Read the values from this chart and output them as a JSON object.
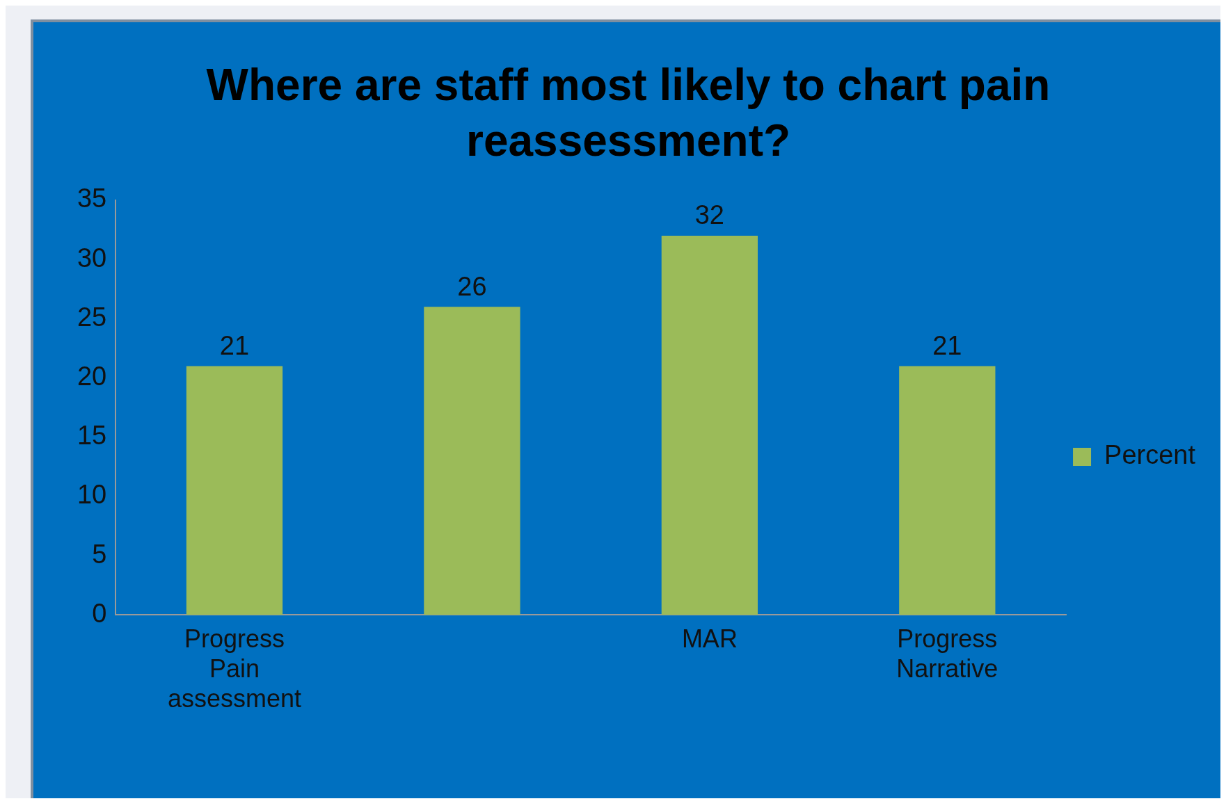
{
  "chart_data": {
    "type": "bar",
    "title": "Where are staff most likely to chart pain reassessment?",
    "categories": [
      "Progress Pain assessment",
      null,
      "MAR",
      "Progress Narrative"
    ],
    "series": [
      {
        "name": "Percent",
        "color": "#9bbb59",
        "values": [
          21,
          26,
          32,
          21
        ]
      }
    ],
    "ylim": [
      0,
      35
    ],
    "yticks": [
      0,
      5,
      10,
      15,
      20,
      25,
      30,
      35
    ],
    "grid": false,
    "legend": "right",
    "data_labels": true
  }
}
